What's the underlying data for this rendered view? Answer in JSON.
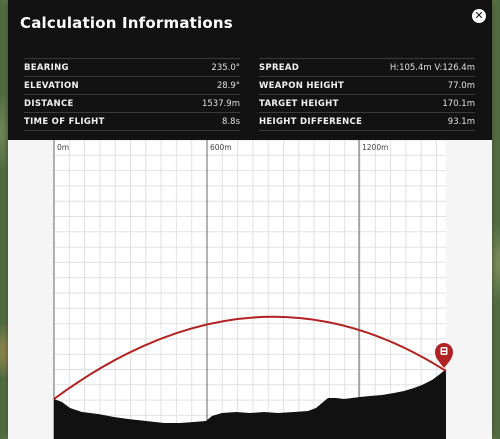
{
  "dialog": {
    "title": "Calculation Informations",
    "close_icon": "close-icon"
  },
  "stats": {
    "left": [
      {
        "label": "BEARING",
        "value": "235.0°"
      },
      {
        "label": "ELEVATION",
        "value": "28.9°"
      },
      {
        "label": "DISTANCE",
        "value": "1537.9m"
      },
      {
        "label": "TIME OF FLIGHT",
        "value": "8.8s"
      }
    ],
    "right": [
      {
        "label": "SPREAD",
        "value": "H:105.4m V:126.4m"
      },
      {
        "label": "WEAPON HEIGHT",
        "value": "77.0m"
      },
      {
        "label": "TARGET HEIGHT",
        "value": "170.1m"
      },
      {
        "label": "HEIGHT DIFFERENCE",
        "value": "93.1m"
      }
    ]
  },
  "profile": {
    "x_ticks": [
      "0m",
      "600m",
      "1200m"
    ],
    "colors": {
      "trajectory": "#b22222",
      "terrain": "#111111",
      "marker": "#b22222"
    },
    "marker_icon": "target-marker-icon"
  }
}
